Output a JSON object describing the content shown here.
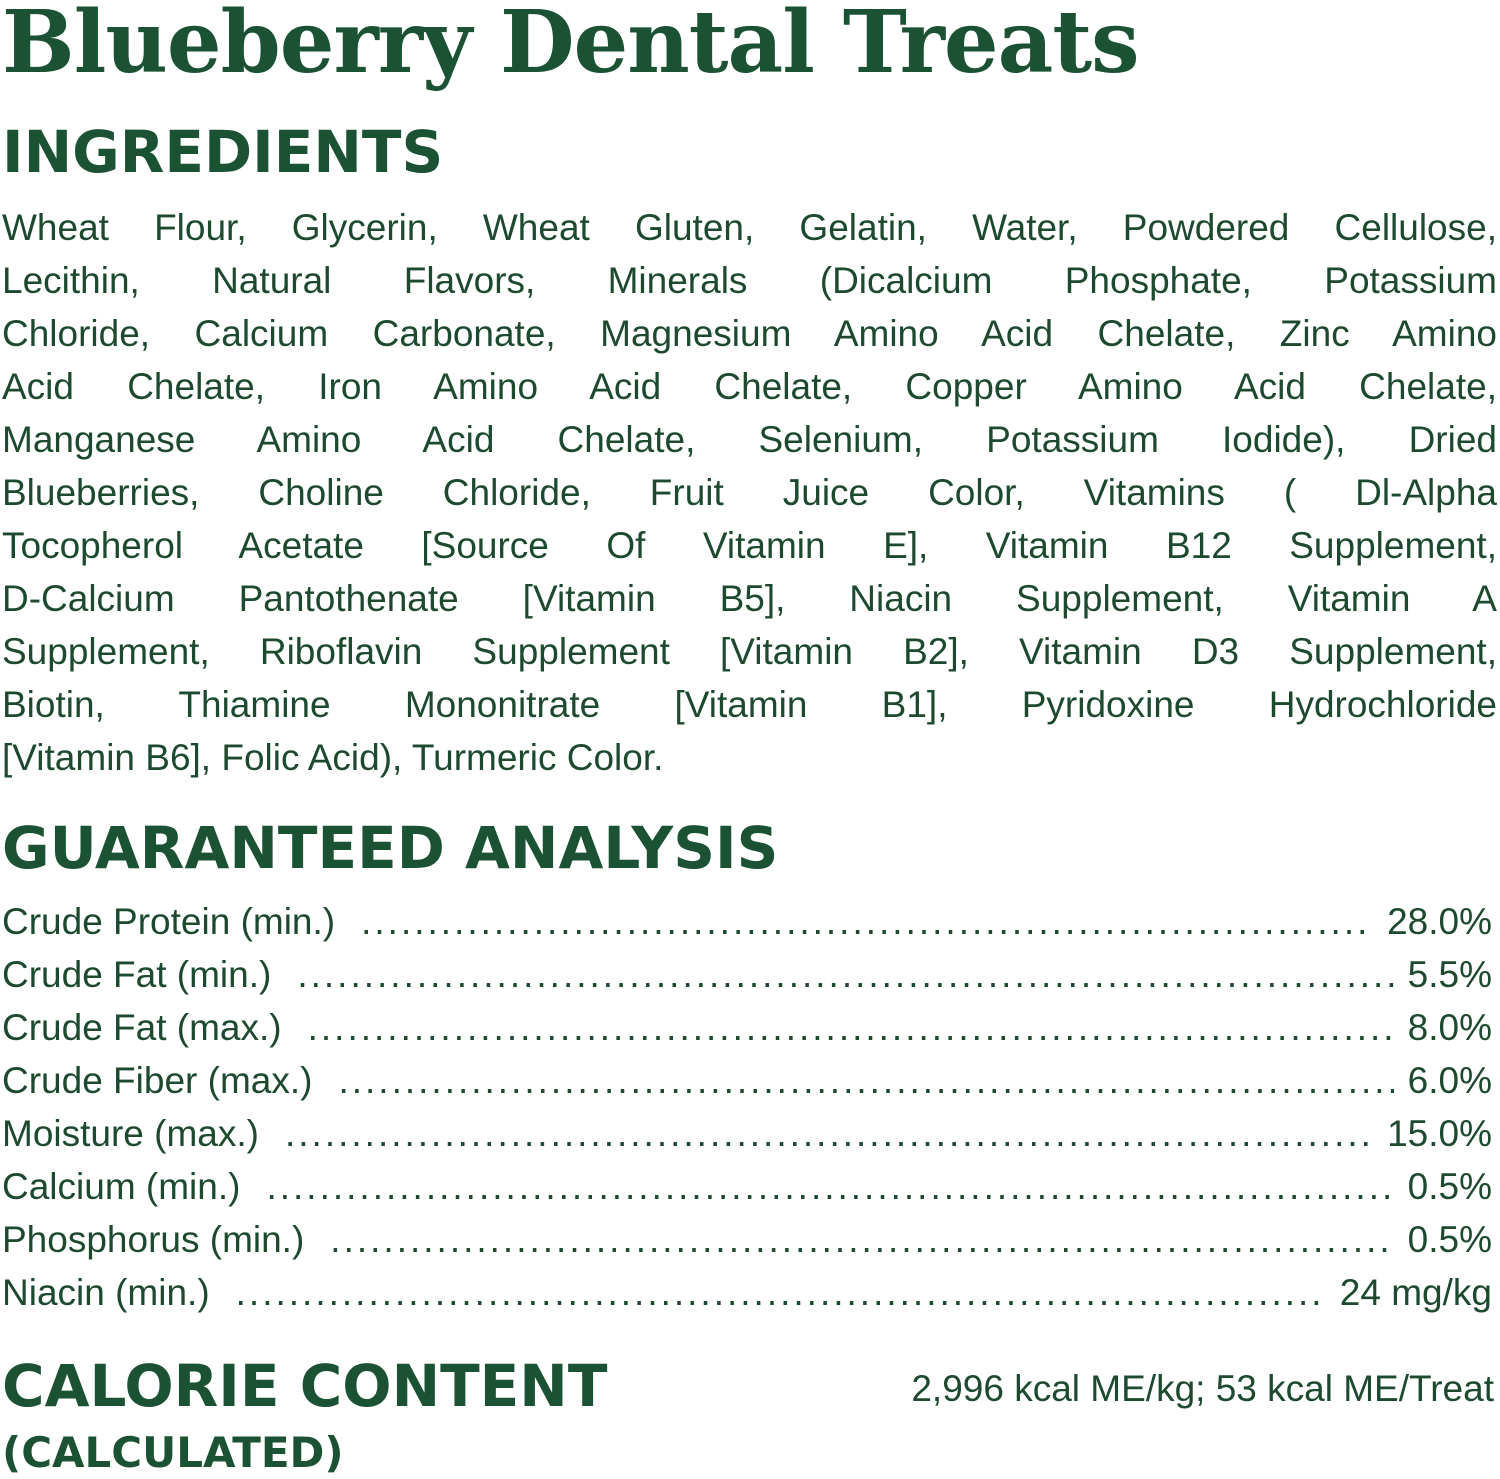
{
  "title": "Blueberry Dental Treats",
  "ingredients": {
    "heading": "INGREDIENTS",
    "lines": [
      "Wheat Flour, Glycerin, Wheat Gluten, Gelatin, Water, Powdered Cellulose,",
      "Lecithin, Natural Flavors, Minerals (Dicalcium Phosphate, Potassium",
      "Chloride, Calcium Carbonate, Magnesium Amino Acid Chelate, Zinc Amino",
      "Acid Chelate, Iron Amino Acid Chelate, Copper Amino Acid Chelate,",
      "Manganese Amino Acid Chelate, Selenium, Potassium Iodide), Dried",
      "Blueberries, Choline Chloride, Fruit Juice Color, Vitamins ( Dl-Alpha",
      "Tocopherol Acetate [Source Of Vitamin E], Vitamin B12 Supplement,",
      "D-Calcium Pantothenate [Vitamin B5], Niacin Supplement, Vitamin A",
      "Supplement, Riboflavin Supplement [Vitamin B2], Vitamin D3 Supplement,",
      "Biotin, Thiamine Mononitrate [Vitamin B1], Pyridoxine Hydrochloride",
      "[Vitamin B6], Folic Acid), Turmeric Color."
    ]
  },
  "analysis": {
    "heading": "GUARANTEED ANALYSIS",
    "rows": [
      {
        "label": "Crude Protein (min.)",
        "value": "28.0%"
      },
      {
        "label": "Crude Fat (min.)",
        "value": "5.5%"
      },
      {
        "label": "Crude Fat (max.)",
        "value": "8.0%"
      },
      {
        "label": "Crude Fiber (max.)",
        "value": "6.0%"
      },
      {
        "label": "Moisture (max.)",
        "value": "15.0%"
      },
      {
        "label": "Calcium (min.)",
        "value": "0.5%"
      },
      {
        "label": "Phosphorus (min.)",
        "value": "0.5%"
      },
      {
        "label": "Niacin (min.)",
        "value": "24 mg/kg"
      }
    ]
  },
  "calorie": {
    "heading": "CALORIE CONTENT",
    "subheading": "(CALCULATED)",
    "value": "2,996 kcal ME/kg; 53 kcal ME/Treat"
  },
  "colors": {
    "heading": "#1b5233",
    "text": "#1d4a2f",
    "background": "#ffffff"
  }
}
